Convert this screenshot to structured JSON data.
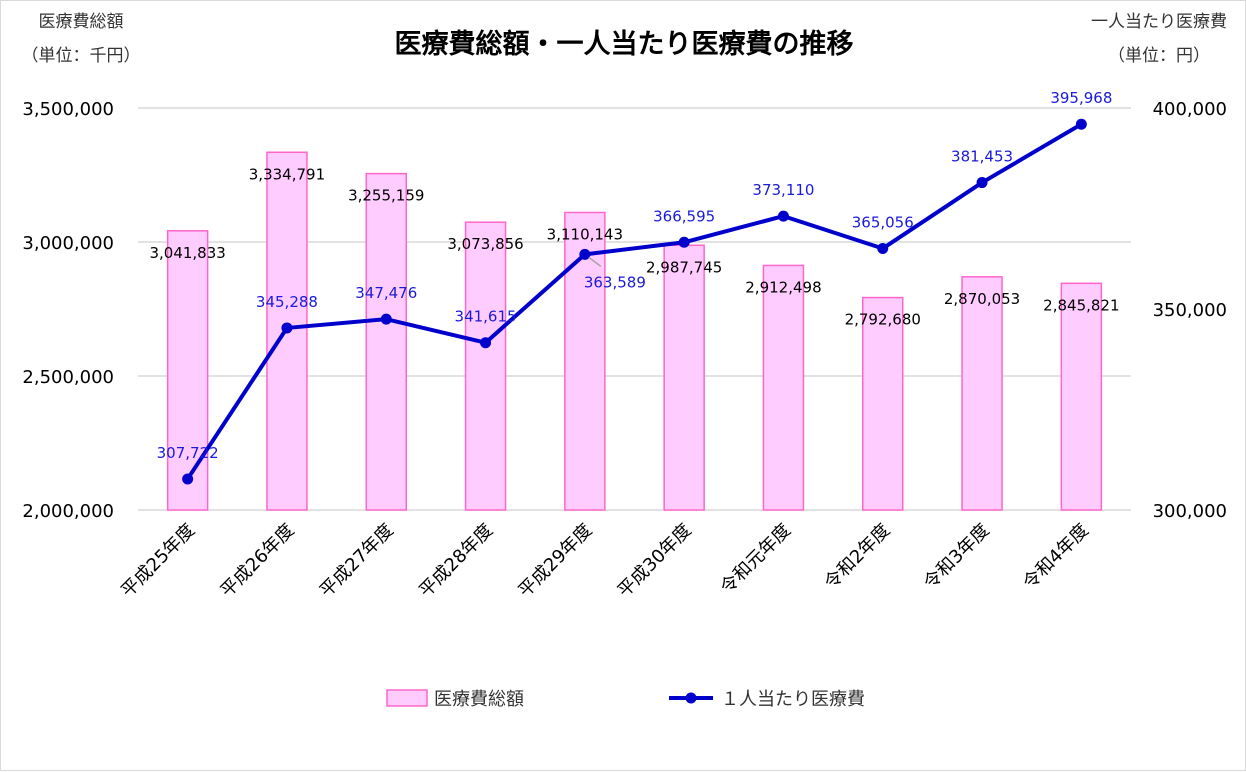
{
  "chart_data": {
    "type": "bar+line",
    "title": "医療費総額・一人当たり医療費の推移",
    "y_left_label": [
      "医療費総額",
      "（単位：千円）"
    ],
    "y_right_label": [
      "一人当たり医療費",
      "（単位：円）"
    ],
    "categories": [
      "平成25年度",
      "平成26年度",
      "平成27年度",
      "平成28年度",
      "平成29年度",
      "平成30年度",
      "令和元年度",
      "令和2年度",
      "令和3年度",
      "令和4年度"
    ],
    "y_left": {
      "lim": [
        2000000,
        3500000
      ],
      "ticks": [
        "2,000,000",
        "2,500,000",
        "3,000,000",
        "3,500,000"
      ],
      "tick_values": [
        2000000,
        2500000,
        3000000,
        3500000
      ]
    },
    "y_right": {
      "lim": [
        300000,
        400000
      ],
      "ticks": [
        "300,000",
        "350,000",
        "400,000"
      ],
      "tick_values": [
        300000,
        350000,
        400000
      ]
    },
    "grid": true,
    "legend_position": "bottom",
    "series": [
      {
        "name": "医療費総額",
        "type": "bar",
        "axis": "left",
        "color": "#ffccff",
        "edge_color": "#ff66cc",
        "values": [
          3041833,
          3334791,
          3255159,
          3073856,
          3110143,
          2987745,
          2912498,
          2792680,
          2870053,
          2845821
        ],
        "labels": [
          "3,041,833",
          "3,334,791",
          "3,255,159",
          "3,073,856",
          "3,110,143",
          "2,987,745",
          "2,912,498",
          "2,792,680",
          "2,870,053",
          "2,845,821"
        ]
      },
      {
        "name": "１人当たり医療費",
        "type": "line",
        "axis": "right",
        "color": "#0000cc",
        "values": [
          307722,
          345288,
          347476,
          341615,
          363589,
          366595,
          373110,
          365056,
          381453,
          395968
        ],
        "labels": [
          "307,722",
          "345,288",
          "347,476",
          "341,615",
          "363,589",
          "366,595",
          "373,110",
          "365,056",
          "381,453",
          "395,968"
        ]
      }
    ]
  }
}
